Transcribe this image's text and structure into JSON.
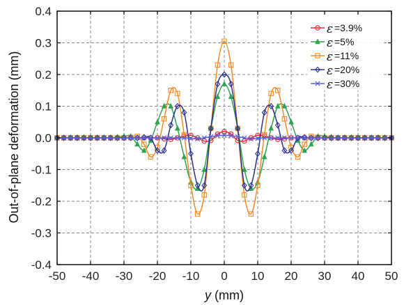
{
  "chart_data": {
    "type": "line",
    "title": "",
    "xlabel_var": "y",
    "xlabel_unit": " (mm)",
    "ylabel": "Out-of-plane deformation (mm)",
    "xlim": [
      -50,
      50
    ],
    "ylim": [
      -0.4,
      0.4
    ],
    "xticks": [
      "-50",
      "-40",
      "-30",
      "-20",
      "-10",
      "0",
      "10",
      "20",
      "30",
      "40",
      "50"
    ],
    "yticks": [
      "-0.4",
      "-0.3",
      "-0.2",
      "-0.1",
      "0.0",
      "0.1",
      "0.2",
      "0.3",
      "0.4"
    ],
    "grid": true,
    "legend_position": "top-right",
    "legend_symbol": "ε",
    "x": [
      -50,
      -48,
      -46,
      -44,
      -42,
      -40,
      -38,
      -36,
      -34,
      -32,
      -30,
      -28,
      -26,
      -24,
      -22,
      -20,
      -18,
      -16,
      -14,
      -12,
      -10,
      -8,
      -6,
      -4,
      -2,
      0,
      2,
      4,
      6,
      8,
      10,
      12,
      14,
      16,
      18,
      20,
      22,
      24,
      26,
      28,
      30,
      32,
      34,
      36,
      38,
      40,
      42,
      44,
      46,
      48,
      50
    ],
    "series": [
      {
        "name": "=3.9%",
        "color": "#e8262b",
        "marker": "circle",
        "values": [
          0,
          0,
          0,
          0,
          0,
          0,
          0,
          0,
          0,
          0,
          0,
          0,
          0,
          0,
          0,
          0,
          -0.003,
          -0.005,
          0,
          0.006,
          0.008,
          0,
          -0.01,
          -0.008,
          0.012,
          0.02,
          0.012,
          -0.008,
          -0.01,
          0,
          0.008,
          0.006,
          0,
          -0.005,
          -0.003,
          0,
          0,
          0,
          0,
          0,
          0,
          0,
          0,
          0,
          0,
          0,
          0,
          0,
          0,
          0,
          0
        ]
      },
      {
        "name": "=5%",
        "color": "#2ea44f",
        "marker": "triangle",
        "values": [
          0,
          0,
          0,
          0,
          0,
          0,
          0,
          0,
          0,
          0.002,
          0.005,
          0.005,
          -0.02,
          -0.04,
          -0.008,
          0.05,
          0.1,
          0.1,
          0.03,
          -0.06,
          -0.14,
          -0.16,
          -0.1,
          0.03,
          0.13,
          0.17,
          0.13,
          0.03,
          -0.1,
          -0.16,
          -0.14,
          -0.06,
          0.03,
          0.1,
          0.1,
          0.05,
          -0.008,
          -0.04,
          -0.02,
          0.005,
          0.005,
          0.002,
          0,
          0,
          0,
          0,
          0,
          0,
          0,
          0,
          0
        ]
      },
      {
        "name": "=11%",
        "color": "#f28c28",
        "marker": "square",
        "values": [
          0,
          0,
          0,
          0,
          0,
          0,
          0,
          0,
          0,
          0,
          0,
          0.002,
          0.005,
          -0.02,
          -0.06,
          -0.03,
          0.06,
          0.15,
          0.14,
          0.01,
          -0.15,
          -0.24,
          -0.18,
          0.03,
          0.23,
          0.305,
          0.23,
          0.03,
          -0.18,
          -0.24,
          -0.15,
          0.01,
          0.14,
          0.15,
          0.06,
          -0.03,
          -0.06,
          -0.02,
          0.005,
          0.002,
          0,
          0,
          0,
          0,
          0,
          0,
          0,
          0,
          0,
          0,
          0
        ]
      },
      {
        "name": "=20%",
        "color": "#2c2f8f",
        "marker": "diamond",
        "values": [
          0,
          0,
          0,
          0,
          0,
          0,
          0,
          0,
          0,
          0,
          0,
          0,
          0,
          0.002,
          0,
          -0.04,
          -0.04,
          0.04,
          0.1,
          0.08,
          -0.05,
          -0.15,
          -0.15,
          0.03,
          0.17,
          0.2,
          0.17,
          0.03,
          -0.15,
          -0.15,
          -0.05,
          0.08,
          0.1,
          0.04,
          -0.04,
          -0.04,
          0,
          0.002,
          0,
          0,
          0,
          0,
          0,
          0,
          0,
          0,
          0,
          0,
          0,
          0,
          0
        ]
      },
      {
        "name": "=30%",
        "color": "#5b5bd6",
        "marker": "x",
        "values": [
          0,
          0,
          0,
          0,
          0,
          0,
          0,
          0,
          0,
          0,
          0,
          0,
          0,
          0,
          0,
          0,
          0,
          0,
          0,
          0,
          -0.002,
          -0.003,
          0,
          0.004,
          0.007,
          0.008,
          0.007,
          0.004,
          0,
          -0.003,
          -0.002,
          0,
          0,
          0,
          0,
          0,
          0,
          0,
          0,
          0,
          0,
          0,
          0,
          0,
          0,
          0,
          0,
          0,
          0,
          0,
          0
        ]
      }
    ]
  }
}
